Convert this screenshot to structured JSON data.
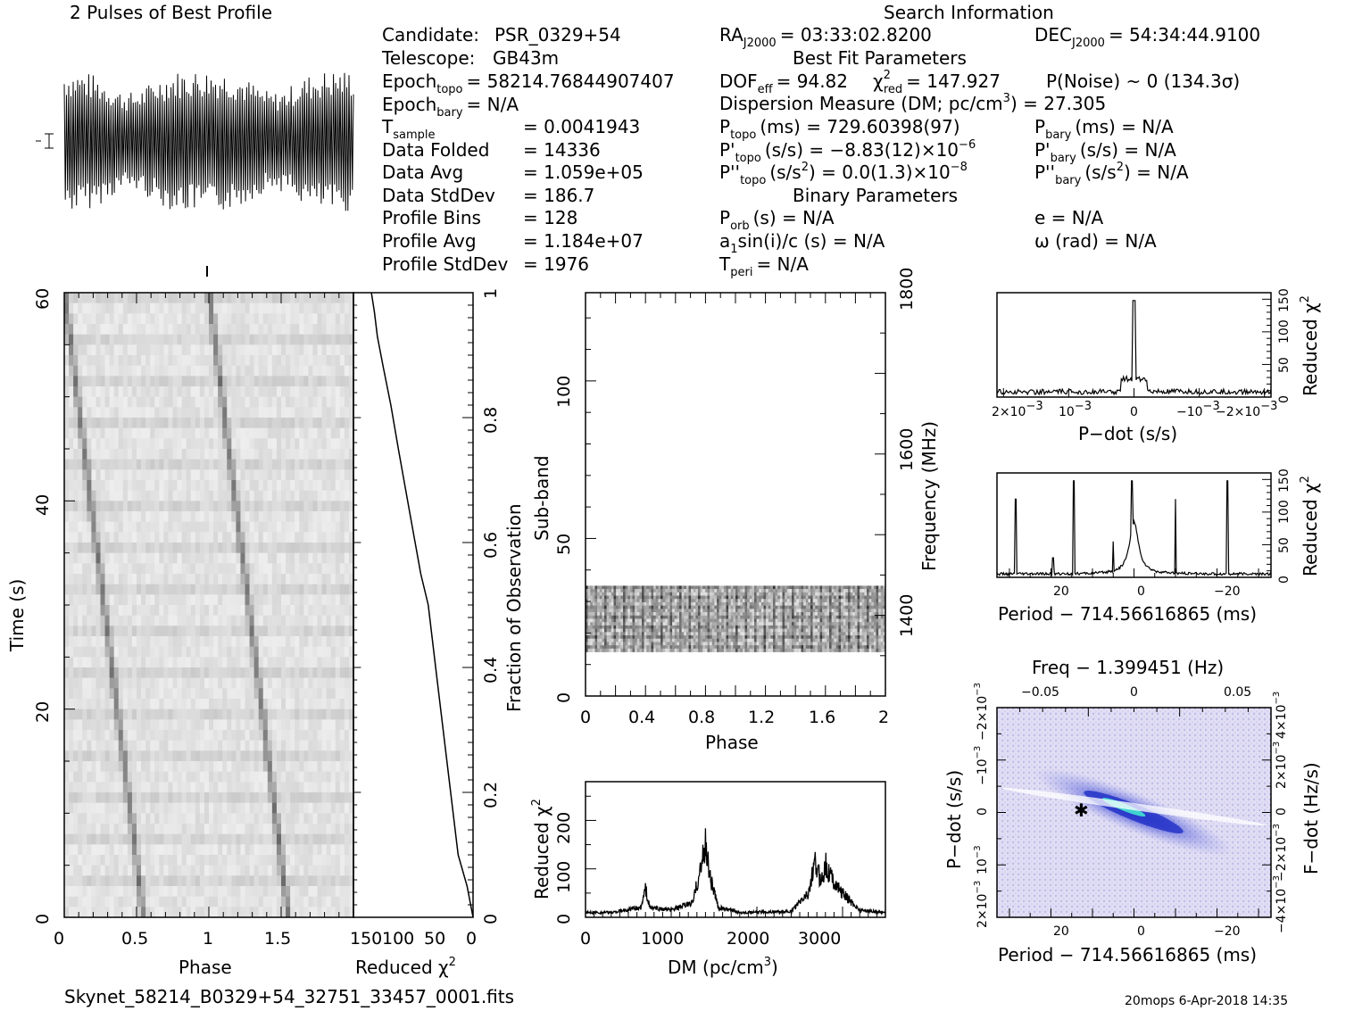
{
  "header": {
    "profile_title": "2 Pulses of Best Profile",
    "search_title": "Search Information",
    "best_fit_title": "Best Fit Parameters",
    "binary_title": "Binary Parameters",
    "filename": "Skynet_58214_B0329+54_32751_33457_0001.fits",
    "footer_right": "20mops   6-Apr-2018 14:35"
  },
  "info": {
    "candidate": {
      "label": "Candidate:",
      "value": "PSR_0329+54"
    },
    "telescope": {
      "label": "Telescope:",
      "value": "GB43m"
    },
    "epoch_topo": {
      "label": "Epoch",
      "sub": "topo",
      "value": "= 58214.76844907407"
    },
    "epoch_bary": {
      "label": "Epoch",
      "sub": "bary",
      "value": "= N/A"
    },
    "t_sample": {
      "label": "T",
      "sub": "sample",
      "value": "=   0.0041943"
    },
    "data_folded": {
      "label": "Data Folded",
      "value": "=   14336"
    },
    "data_avg": {
      "label": "Data Avg",
      "value": "=   1.059e+05"
    },
    "data_stddev": {
      "label": "Data StdDev",
      "value": "=   186.7"
    },
    "profile_bins": {
      "label": "Profile Bins",
      "value": "=   128"
    },
    "profile_avg": {
      "label": "Profile Avg",
      "value": "=   1.184e+07"
    },
    "profile_stddev": {
      "label": "Profile StdDev",
      "value": "=   1976"
    }
  },
  "search": {
    "ra": {
      "label": "RA",
      "sub": "J2000",
      "value": "= 03:33:02.8200"
    },
    "dec": {
      "label": "DEC",
      "sub": "J2000",
      "value": "= 54:34:44.9100"
    },
    "dof_label": "DOF",
    "dof_sub": "eff",
    "dof_value": "= 94.82",
    "chi_label": "χ",
    "chi_sup": "2",
    "chi_sub": "red",
    "chi_value": "= 147.927",
    "pnoise": "P(Noise) ~ 0    (134.3σ)",
    "dm_text": "Dispersion Measure (DM; pc/cm",
    "dm_sup": "3",
    "dm_value": ") = 27.305",
    "p_topo": {
      "label": "P",
      "sub": "topo",
      "value": "(ms) =   729.60398(97)"
    },
    "p_bary": {
      "label": "P",
      "sub": "bary",
      "value": "(ms) = N/A"
    },
    "pd_topo": {
      "label": "P'",
      "sub": "topo",
      "value": "(s/s) = −8.83(12)×10",
      "exp": "−6"
    },
    "pd_bary": {
      "label": "P'",
      "sub": "bary",
      "value": "(s/s) = N/A"
    },
    "pdd_topo": {
      "label": "P''",
      "sub": "topo",
      "value": "(s/s",
      "sup": "2",
      "value2": ") = 0.0(1.3)×10",
      "exp": "−8"
    },
    "pdd_bary": {
      "label": "P''",
      "sub": "bary",
      "value": "(s/s",
      "sup": "2",
      "value2": ") = N/A"
    },
    "p_orb": {
      "label": "P",
      "sub": "orb",
      "value": "(s) = N/A"
    },
    "e": "e = N/A",
    "a1": {
      "label": "a",
      "sub": "1",
      "value": "sin(i)/c (s) = N/A"
    },
    "omega": "ω (rad) = N/A",
    "t_peri": {
      "label": "T",
      "sub": "peri",
      "value": "= N/A"
    }
  },
  "chart_data": [
    {
      "type": "line",
      "id": "profile",
      "title": "2 Pulses of Best Profile",
      "xlim": [
        0,
        2
      ],
      "description_values": "dense noise-like oscillation, broad envelope with dips at ~0.45 and ~1.45 phase"
    },
    {
      "type": "heatmap",
      "id": "time-phase",
      "xlabel": "Phase",
      "ylabel": "Time (s)",
      "xlim": [
        0,
        2
      ],
      "ylim": [
        0,
        60
      ],
      "x_ticks": [
        "0",
        "0.5",
        "1",
        "1.5"
      ],
      "y_ticks": [
        "0",
        "20",
        "40",
        "60"
      ],
      "drift_tracks": [
        {
          "phase_at_t0": 0.55,
          "phase_at_t60": 0.0
        },
        {
          "phase_at_t0": 1.55,
          "phase_at_t60": 1.0
        }
      ]
    },
    {
      "type": "line",
      "id": "reduced-chi-vs-time",
      "xlabel": "Reduced χ",
      "xlabel_sup": "2",
      "ylabel": "Fraction of Observation",
      "xlim": [
        160,
        0
      ],
      "ylim": [
        0,
        1
      ],
      "x_ticks": [
        "150",
        "100",
        "50",
        "0"
      ],
      "y_ticks": [
        "0",
        "0.2",
        "0.4",
        "0.6",
        "0.8",
        "1"
      ],
      "x": [
        0,
        8,
        20,
        30,
        40,
        50,
        60,
        70,
        85,
        100,
        110,
        120,
        128,
        132,
        136
      ],
      "y": [
        0,
        0.05,
        0.1,
        0.2,
        0.3,
        0.4,
        0.5,
        0.55,
        0.65,
        0.75,
        0.82,
        0.88,
        0.93,
        0.97,
        1.0
      ]
    },
    {
      "type": "heatmap",
      "id": "subband-phase",
      "xlabel": "Phase",
      "ylabel": "Sub-band",
      "y2label": "Frequency (MHz)",
      "xlim": [
        0,
        2
      ],
      "ylim": [
        0,
        128
      ],
      "x_ticks": [
        "0",
        "0.4",
        "0.8",
        "1.2",
        "1.6",
        "2"
      ],
      "y_ticks": [
        "0",
        "50",
        "100"
      ],
      "y2_ticks": [
        "1400",
        "1600",
        "1800"
      ],
      "active_band": [
        14,
        35
      ]
    },
    {
      "type": "line",
      "id": "dm-chi",
      "xlabel": "DM (pc/cm",
      "xlabel_sup": "3",
      "xlabel_end": ")",
      "ylabel": "Reduced χ",
      "ylabel_sup": "2",
      "xlim": [
        0,
        3500
      ],
      "ylim": [
        0,
        280
      ],
      "x_ticks": [
        "0",
        "1000",
        "2000",
        "3000"
      ],
      "y_ticks": [
        "0",
        "100",
        "200"
      ],
      "x": [
        0,
        300,
        650,
        700,
        750,
        1000,
        1250,
        1330,
        1380,
        1400,
        1420,
        1460,
        1550,
        1800,
        2400,
        2600,
        2680,
        2750,
        2800,
        2850,
        2950,
        3050,
        3200,
        3500
      ],
      "y": [
        10,
        10,
        20,
        60,
        20,
        15,
        30,
        90,
        130,
        155,
        125,
        80,
        20,
        10,
        12,
        50,
        110,
        75,
        110,
        90,
        60,
        40,
        15,
        10
      ]
    },
    {
      "type": "line",
      "id": "pdot-chi",
      "xlabel": "P−dot (s/s)",
      "ylabel": "Reduced χ",
      "ylabel_sup": "2",
      "xlim": [
        0.0021,
        -0.0021
      ],
      "ylim": [
        0,
        160
      ],
      "x_ticks": [
        "2×10",
        "10",
        "0",
        "−10",
        "−2×10"
      ],
      "x_tick_exp": [
        "−3",
        "−3",
        "",
        "−3",
        "−3"
      ],
      "y_ticks": [
        "0",
        "50",
        "100",
        "150"
      ],
      "peak": {
        "x": 0,
        "y": 148
      },
      "baseline": 8
    },
    {
      "type": "line",
      "id": "period-chi",
      "xlabel": "Period − 714.56616865 (ms)",
      "ylabel": "Reduced χ",
      "ylabel_sup": "2",
      "xlim": [
        33,
        -33
      ],
      "ylim": [
        0,
        160
      ],
      "x_ticks": [
        "20",
        "0",
        "−20"
      ],
      "y_ticks": [
        "0",
        "50",
        "100",
        "150"
      ],
      "spikes": [
        {
          "x": 28.5,
          "y": 120
        },
        {
          "x": 19.5,
          "y": 30
        },
        {
          "x": 14.5,
          "y": 148
        },
        {
          "x": 5,
          "y": 55
        },
        {
          "x": 0.5,
          "y": 148
        },
        {
          "x": -10,
          "y": 120
        },
        {
          "x": -22.5,
          "y": 148
        }
      ],
      "central_bump": {
        "x": 0,
        "y": 80
      }
    },
    {
      "type": "heatmap",
      "id": "period-pdot",
      "title": "Freq − 1.399451 (Hz)",
      "xlabel": "Period − 714.56616865 (ms)",
      "ylabel": "P−dot (s/s)",
      "y2label": "F−dot (Hz/s)",
      "x_ticks": [
        "20",
        "0",
        "−20"
      ],
      "x2_ticks": [
        "−0.05",
        "0",
        "0.05"
      ],
      "y_ticks": [
        "2×10",
        "10",
        "0",
        "−10",
        "−2×10"
      ],
      "y_tick_exp": [
        "−3",
        "−3",
        "",
        "−3",
        "−3"
      ],
      "y2_ticks": [
        "−4×10",
        "−2×10",
        "0",
        "2×10",
        "4×10"
      ],
      "y2_tick_exp": [
        "−3",
        "−3",
        "",
        "−3",
        "−3"
      ],
      "marker": {
        "x": 14.5,
        "y": 0
      }
    }
  ]
}
